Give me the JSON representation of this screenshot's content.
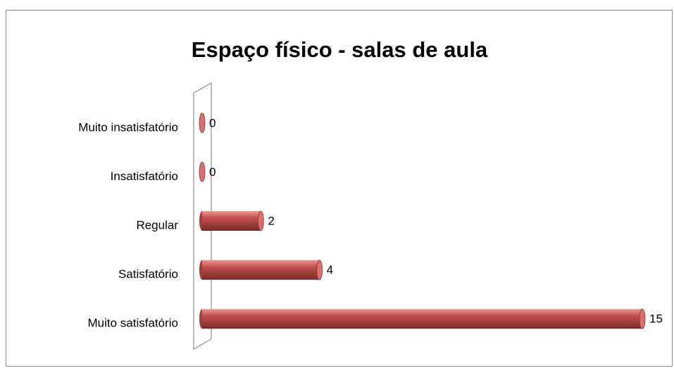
{
  "chart_data": {
    "type": "bar",
    "orientation": "horizontal",
    "title": "Espaço físico - salas de aula",
    "categories": [
      "Muito insatisfatório",
      "Insatisfatório",
      "Regular",
      "Satisfatório",
      "Muito satisfatório"
    ],
    "values": [
      0,
      0,
      2,
      4,
      15
    ],
    "color": "#c0504d"
  }
}
